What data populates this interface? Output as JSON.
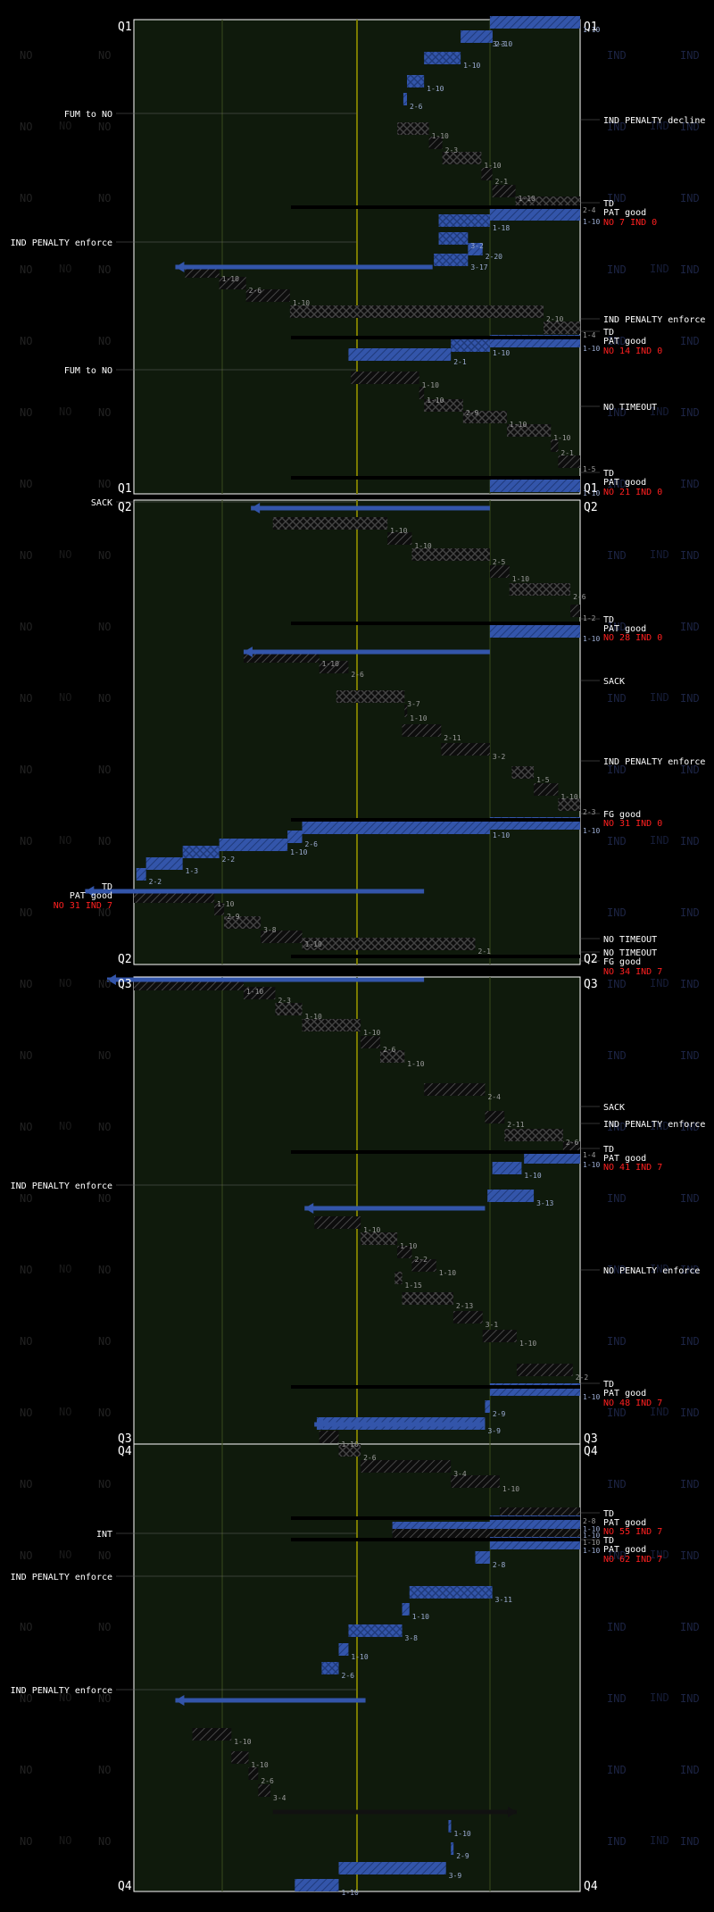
{
  "chart_data": {
    "type": "drive-chart",
    "team_left": "NO",
    "team_right": "IND",
    "quarter_labels": [
      "Q1",
      "Q2",
      "Q3",
      "Q4"
    ],
    "colors": {
      "background": "#000000",
      "field": "#0f1a0c",
      "field_line": "#3a4a1c",
      "midfield": "#7a7a00",
      "ind": "#3355aa",
      "no_fill": "#121212",
      "penalty_line": "#666666",
      "score": "#ff2020"
    },
    "annotations_left": [
      {
        "text": "FUM to NO",
        "y": 127
      },
      {
        "text": "IND PENALTY enforce",
        "y": 271
      },
      {
        "text": "FUM to NO",
        "y": 414
      },
      {
        "text": "SACK",
        "y": 562
      },
      {
        "text": "IND PENALTY enforce",
        "y": 1327
      },
      {
        "text": "INT",
        "y": 1717
      },
      {
        "text": "IND PENALTY enforce",
        "y": 1765
      },
      {
        "text": "IND PENALTY enforce",
        "y": 1892
      }
    ],
    "annotations_right": [
      {
        "text": "IND PENALTY decline",
        "y": 134
      },
      {
        "text": "TD",
        "y": 227
      },
      {
        "text": "PAT good",
        "y": 237
      },
      {
        "text": "NO 7 IND 0",
        "y": 248,
        "score": true
      },
      {
        "text": "IND PENALTY enforce",
        "y": 357
      },
      {
        "text": "TD",
        "y": 371
      },
      {
        "text": "PAT good",
        "y": 381
      },
      {
        "text": "NO 14 IND 0",
        "y": 392,
        "score": true
      },
      {
        "text": "NO TIMEOUT",
        "y": 455
      },
      {
        "text": "TD",
        "y": 529
      },
      {
        "text": "PAT good",
        "y": 539
      },
      {
        "text": "NO 21 IND 0",
        "y": 550,
        "score": true
      },
      {
        "text": "TD",
        "y": 693
      },
      {
        "text": "PAT good",
        "y": 703
      },
      {
        "text": "NO 28 IND 0",
        "y": 713,
        "score": true
      },
      {
        "text": "SACK",
        "y": 762
      },
      {
        "text": "IND PENALTY enforce",
        "y": 852
      },
      {
        "text": "FG good",
        "y": 911
      },
      {
        "text": "NO 31 IND 0",
        "y": 921,
        "score": true
      },
      {
        "text": "NO TIMEOUT",
        "y": 1051
      },
      {
        "text": "NO TIMEOUT",
        "y": 1066
      },
      {
        "text": "FG good",
        "y": 1076
      },
      {
        "text": "NO 34 IND 7",
        "y": 1087,
        "score": true
      },
      {
        "text": "SACK",
        "y": 1239
      },
      {
        "text": "IND PENALTY enforce",
        "y": 1258
      },
      {
        "text": "TD",
        "y": 1286
      },
      {
        "text": "PAT good",
        "y": 1296
      },
      {
        "text": "NO 41 IND 7",
        "y": 1306,
        "score": true
      },
      {
        "text": "NO PENALTY enforce",
        "y": 1422
      },
      {
        "text": "TD",
        "y": 1549
      },
      {
        "text": "PAT good",
        "y": 1559
      },
      {
        "text": "NO 48 IND 7",
        "y": 1570,
        "score": true
      },
      {
        "text": "TD",
        "y": 1694
      },
      {
        "text": "PAT good",
        "y": 1704
      },
      {
        "text": "NO 55 IND 7",
        "y": 1714,
        "score": true
      },
      {
        "text": "TD",
        "y": 1724
      },
      {
        "text": "PAT good",
        "y": 1734
      },
      {
        "text": "NO 62 IND 7",
        "y": 1745,
        "score": true
      }
    ],
    "score_left": {
      "text_a": "PAT good",
      "text_b": "NO 31 IND 7",
      "td": "TD"
    },
    "plays": [
      {
        "a": 402,
        "b": 476,
        "y": 26,
        "t": "I",
        "l": "1-10"
      },
      {
        "a": 378,
        "b": 402,
        "y": 42,
        "t": "I",
        "l": "3-3"
      },
      {
        "a": 402,
        "b": 402,
        "y": 42,
        "t": "I",
        "l": "2-10"
      },
      {
        "a": 348,
        "b": 378,
        "y": 66,
        "t": "Ix",
        "l": "1-10"
      },
      {
        "a": 334,
        "b": 348,
        "y": 92,
        "t": "Ix",
        "l": "1-10"
      },
      {
        "a": 331,
        "b": 334,
        "y": 112,
        "t": "I",
        "l": "2-6"
      },
      {
        "a": 326,
        "b": 352,
        "y": 145,
        "t": "Nx",
        "l": "1-10"
      },
      {
        "a": 352,
        "b": 363,
        "y": 161,
        "t": "N",
        "l": "2-3"
      },
      {
        "a": 363,
        "b": 395,
        "y": 178,
        "t": "Nx",
        "l": "1-10"
      },
      {
        "a": 395,
        "b": 404,
        "y": 196,
        "t": "N",
        "l": "2-1"
      },
      {
        "a": 404,
        "b": 423,
        "y": 215,
        "t": "N",
        "l": "1-10"
      },
      {
        "a": 423,
        "b": 476,
        "y": 228,
        "t": "Nx",
        "l": "2-4"
      },
      {
        "a": 402,
        "b": 476,
        "y": 241,
        "t": "I",
        "l": "1-10"
      },
      {
        "a": 360,
        "b": 402,
        "y": 248,
        "t": "Ix",
        "l": "1-18"
      },
      {
        "a": 360,
        "b": 384,
        "y": 268,
        "t": "Ix",
        "l": "3-2"
      },
      {
        "a": 384,
        "b": 396,
        "y": 280,
        "t": "I",
        "l": "2-20"
      },
      {
        "a": 356,
        "b": 384,
        "y": 292,
        "t": "Ix",
        "l": "3-17"
      },
      {
        "a": 152,
        "b": 180,
        "y": 305,
        "t": "N",
        "l": "1-10"
      },
      {
        "a": 180,
        "b": 202,
        "y": 318,
        "t": "N",
        "l": "2-6"
      },
      {
        "a": 202,
        "b": 238,
        "y": 332,
        "t": "N",
        "l": "1-10"
      },
      {
        "a": 238,
        "b": 446,
        "y": 350,
        "t": "Nx",
        "l": "2-10"
      },
      {
        "a": 446,
        "b": 476,
        "y": 368,
        "t": "Nx",
        "l": "1-4"
      },
      {
        "a": 402,
        "b": 476,
        "y": 383,
        "t": "I",
        "l": "1-10"
      },
      {
        "a": 370,
        "b": 402,
        "y": 388,
        "t": "Ix",
        "l": "1-10"
      },
      {
        "a": 286,
        "b": 370,
        "y": 398,
        "t": "I",
        "l": "2-1"
      },
      {
        "a": 288,
        "b": 344,
        "y": 424,
        "t": "N",
        "l": "1-10"
      },
      {
        "a": 344,
        "b": 348,
        "y": 441,
        "t": "N",
        "l": "1-10"
      },
      {
        "a": 348,
        "b": 380,
        "y": 455,
        "t": "Nx",
        "l": "2-9"
      },
      {
        "a": 380,
        "b": 416,
        "y": 468,
        "t": "Nx",
        "l": "1-10"
      },
      {
        "a": 416,
        "b": 452,
        "y": 483,
        "t": "Nx",
        "l": "1-10"
      },
      {
        "a": 452,
        "b": 458,
        "y": 500,
        "t": "N",
        "l": "2-1"
      },
      {
        "a": 458,
        "b": 476,
        "y": 518,
        "t": "N",
        "l": "1-5"
      },
      {
        "a": 402,
        "b": 476,
        "y": 545,
        "t": "I",
        "l": "1-10"
      },
      {
        "a": 224,
        "b": 318,
        "y": 587,
        "t": "Nx",
        "l": "1-10"
      },
      {
        "a": 318,
        "b": 338,
        "y": 604,
        "t": "N",
        "l": "1-10"
      },
      {
        "a": 338,
        "b": 402,
        "y": 622,
        "t": "Nx",
        "l": "2-5"
      },
      {
        "a": 402,
        "b": 418,
        "y": 641,
        "t": "N",
        "l": "1-10"
      },
      {
        "a": 418,
        "b": 468,
        "y": 661,
        "t": "Nx",
        "l": "2-6"
      },
      {
        "a": 468,
        "b": 476,
        "y": 685,
        "t": "N",
        "l": "1-2"
      },
      {
        "a": 402,
        "b": 476,
        "y": 708,
        "t": "I",
        "l": "1-10"
      },
      {
        "a": 200,
        "b": 262,
        "y": 736,
        "t": "N",
        "l": "1-10"
      },
      {
        "a": 262,
        "b": 286,
        "y": 748,
        "t": "N",
        "l": "2-6"
      },
      {
        "a": 276,
        "b": 332,
        "y": 781,
        "t": "Nx",
        "l": "3-7"
      },
      {
        "a": 332,
        "b": 334,
        "y": 797,
        "t": "N",
        "l": "1-10"
      },
      {
        "a": 330,
        "b": 362,
        "y": 819,
        "t": "N",
        "l": "2-11"
      },
      {
        "a": 362,
        "b": 402,
        "y": 840,
        "t": "N",
        "l": "3-2"
      },
      {
        "a": 420,
        "b": 438,
        "y": 866,
        "t": "Nx",
        "l": "1-5"
      },
      {
        "a": 438,
        "b": 458,
        "y": 885,
        "t": "N",
        "l": "1-10"
      },
      {
        "a": 458,
        "b": 476,
        "y": 902,
        "t": "Nx",
        "l": "2-3"
      },
      {
        "a": 402,
        "b": 476,
        "y": 923,
        "t": "I",
        "l": "1-10"
      },
      {
        "a": 248,
        "b": 402,
        "y": 928,
        "t": "I",
        "l": "1-10"
      },
      {
        "a": 236,
        "b": 248,
        "y": 938,
        "t": "I",
        "l": "2-6"
      },
      {
        "a": 180,
        "b": 236,
        "y": 947,
        "t": "I",
        "l": "1-10"
      },
      {
        "a": 150,
        "b": 180,
        "y": 955,
        "t": "Ix",
        "l": "2-2"
      },
      {
        "a": 120,
        "b": 150,
        "y": 968,
        "t": "I",
        "l": "1-3"
      },
      {
        "a": 112,
        "b": 120,
        "y": 980,
        "t": "I",
        "l": "2-2"
      },
      {
        "a": 110,
        "b": 176,
        "y": 1005,
        "t": "N",
        "l": "1-10"
      },
      {
        "a": 176,
        "b": 184,
        "y": 1019,
        "t": "N",
        "l": "2-9"
      },
      {
        "a": 184,
        "b": 214,
        "y": 1034,
        "t": "Nx",
        "l": "3-8"
      },
      {
        "a": 214,
        "b": 248,
        "y": 1050,
        "t": "N",
        "l": "1-10"
      },
      {
        "a": 248,
        "b": 390,
        "y": 1058,
        "t": "Nx",
        "l": "2-1"
      },
      {
        "a": 110,
        "b": 200,
        "y": 1103,
        "t": "N",
        "l": "1-10"
      },
      {
        "a": 200,
        "b": 226,
        "y": 1113,
        "t": "N",
        "l": "2-3"
      },
      {
        "a": 226,
        "b": 248,
        "y": 1131,
        "t": "Nx",
        "l": "1-10"
      },
      {
        "a": 248,
        "b": 296,
        "y": 1149,
        "t": "Nx",
        "l": "1-10"
      },
      {
        "a": 296,
        "b": 312,
        "y": 1168,
        "t": "N",
        "l": "2-6"
      },
      {
        "a": 312,
        "b": 332,
        "y": 1184,
        "t": "Nx",
        "l": "1-10"
      },
      {
        "a": 348,
        "b": 398,
        "y": 1221,
        "t": "N",
        "l": "2-4"
      },
      {
        "a": 398,
        "b": 414,
        "y": 1252,
        "t": "N",
        "l": "2-11"
      },
      {
        "a": 414,
        "b": 462,
        "y": 1272,
        "t": "Nx",
        "l": "2-6"
      },
      {
        "a": 462,
        "b": 476,
        "y": 1286,
        "t": "N",
        "l": "1-4"
      },
      {
        "a": 430,
        "b": 476,
        "y": 1297,
        "t": "I",
        "l": "1-10"
      },
      {
        "a": 404,
        "b": 428,
        "y": 1309,
        "t": "I",
        "l": "1-10"
      },
      {
        "a": 400,
        "b": 438,
        "y": 1340,
        "t": "I",
        "l": "3-13"
      },
      {
        "a": 258,
        "b": 296,
        "y": 1370,
        "t": "N",
        "l": "1-10"
      },
      {
        "a": 296,
        "b": 326,
        "y": 1388,
        "t": "Nx",
        "l": "1-10"
      },
      {
        "a": 326,
        "b": 338,
        "y": 1403,
        "t": "N",
        "l": "2-2"
      },
      {
        "a": 338,
        "b": 358,
        "y": 1418,
        "t": "N",
        "l": "1-10"
      },
      {
        "a": 324,
        "b": 330,
        "y": 1432,
        "t": "Nx",
        "l": "1-15"
      },
      {
        "a": 330,
        "b": 372,
        "y": 1455,
        "t": "Nx",
        "l": "2-13"
      },
      {
        "a": 372,
        "b": 396,
        "y": 1476,
        "t": "N",
        "l": "3-1"
      },
      {
        "a": 396,
        "b": 424,
        "y": 1497,
        "t": "N",
        "l": "1-10"
      },
      {
        "a": 424,
        "b": 470,
        "y": 1535,
        "t": "N",
        "l": "2-2"
      },
      {
        "a": 402,
        "b": 476,
        "y": 1557,
        "t": "I",
        "l": "1-10"
      },
      {
        "a": 398,
        "b": 402,
        "y": 1576,
        "t": "I",
        "l": "2-9"
      },
      {
        "a": 260,
        "b": 398,
        "y": 1595,
        "t": "I",
        "l": "3-9"
      },
      {
        "a": 262,
        "b": 278,
        "y": 1610,
        "t": "N",
        "l": "1-10"
      },
      {
        "a": 278,
        "b": 296,
        "y": 1625,
        "t": "Nx",
        "l": "2-6"
      },
      {
        "a": 296,
        "b": 370,
        "y": 1643,
        "t": "N",
        "l": "3-4"
      },
      {
        "a": 370,
        "b": 410,
        "y": 1660,
        "t": "N",
        "l": "1-10"
      },
      {
        "a": 410,
        "b": 476,
        "y": 1696,
        "t": "N",
        "l": "2-8"
      },
      {
        "a": 402,
        "b": 476,
        "y": 1705,
        "t": "I",
        "l": "1-10"
      },
      {
        "a": 322,
        "b": 476,
        "y": 1712,
        "t": "I",
        "l": "1-10"
      },
      {
        "a": 322,
        "b": 476,
        "y": 1720,
        "t": "N",
        "l": "1-10"
      },
      {
        "a": 402,
        "b": 476,
        "y": 1729,
        "t": "I",
        "l": "1-10"
      },
      {
        "a": 390,
        "b": 402,
        "y": 1745,
        "t": "I",
        "l": "2-8"
      },
      {
        "a": 336,
        "b": 404,
        "y": 1784,
        "t": "Ix",
        "l": "3-11"
      },
      {
        "a": 330,
        "b": 336,
        "y": 1803,
        "t": "I",
        "l": "1-10"
      },
      {
        "a": 286,
        "b": 330,
        "y": 1827,
        "t": "Ix",
        "l": "3-8"
      },
      {
        "a": 278,
        "b": 286,
        "y": 1848,
        "t": "I",
        "l": "1-10"
      },
      {
        "a": 264,
        "b": 278,
        "y": 1869,
        "t": "Ix",
        "l": "2-6"
      },
      {
        "a": 158,
        "b": 190,
        "y": 1943,
        "t": "N",
        "l": "1-10"
      },
      {
        "a": 190,
        "b": 204,
        "y": 1969,
        "t": "N",
        "l": "1-10"
      },
      {
        "a": 204,
        "b": 212,
        "y": 1987,
        "t": "N",
        "l": "2-6"
      },
      {
        "a": 212,
        "b": 222,
        "y": 2006,
        "t": "N",
        "l": "3-4"
      },
      {
        "a": 368,
        "b": 370,
        "y": 2046,
        "t": "I",
        "l": "1-10"
      },
      {
        "a": 370,
        "b": 370,
        "y": 2071,
        "t": "I",
        "l": "2-9"
      },
      {
        "a": 278,
        "b": 366,
        "y": 2093,
        "t": "I",
        "l": "3-9"
      },
      {
        "a": 242,
        "b": 278,
        "y": 2112,
        "t": "I",
        "l": "1-10"
      }
    ],
    "arrows": [
      {
        "from": 355,
        "to": 144,
        "y": 299,
        "team": "I"
      },
      {
        "from": 402,
        "to": 206,
        "y": 569,
        "team": "I"
      },
      {
        "from": 402,
        "to": 200,
        "y": 730,
        "team": "I"
      },
      {
        "from": 348,
        "to": 70,
        "y": 998,
        "team": "I"
      },
      {
        "from": 348,
        "to": 88,
        "y": 1097,
        "team": "I"
      },
      {
        "from": 398,
        "to": 250,
        "y": 1353,
        "team": "I"
      },
      {
        "from": 398,
        "to": 258,
        "y": 1595,
        "team": "I"
      },
      {
        "from": 300,
        "to": 144,
        "y": 1904,
        "team": "I"
      },
      {
        "from": 224,
        "to": 424,
        "y": 2029,
        "team": "N"
      }
    ]
  }
}
